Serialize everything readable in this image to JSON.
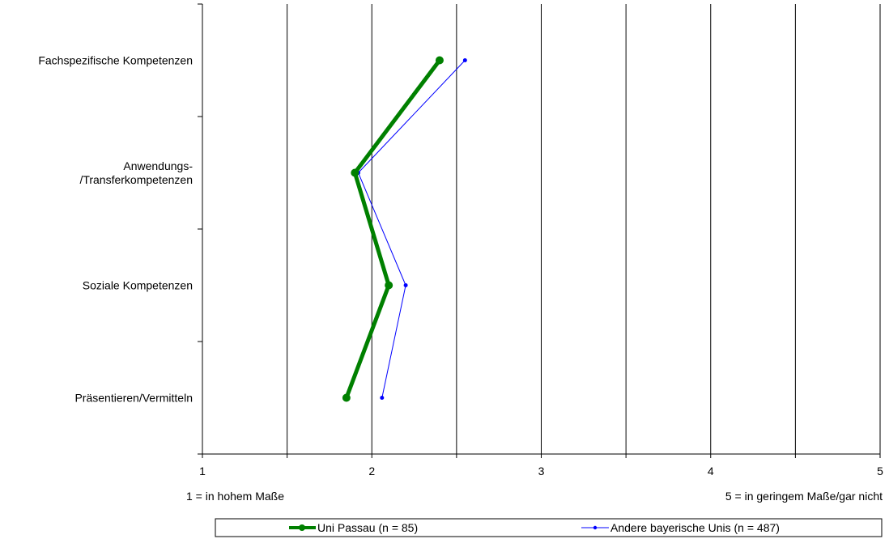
{
  "chart_data": {
    "type": "line",
    "orientation": "horizontal",
    "categories": [
      "Fachspezifische Kompetenzen",
      "Anwendungs-\n/Transferkompetenzen",
      "Soziale Kompetenzen",
      "Präsentieren/Vermitteln"
    ],
    "xlim": [
      1,
      5
    ],
    "x_ticks": [
      "1",
      "2",
      "3",
      "4",
      "5"
    ],
    "grid": "vertical",
    "series": [
      {
        "name": "Uni Passau (n = 85)",
        "values": [
          2.4,
          1.9,
          2.1,
          1.85
        ],
        "color": "#008000"
      },
      {
        "name": "Andere bayerische Unis (n = 487)",
        "values": [
          2.55,
          1.92,
          2.2,
          2.06
        ],
        "color": "#0000ff"
      }
    ],
    "scale_notes": {
      "left": "1 = in hohem Maße",
      "right": "5 = in geringem Maße/gar nicht"
    },
    "legend_position": "bottom"
  }
}
